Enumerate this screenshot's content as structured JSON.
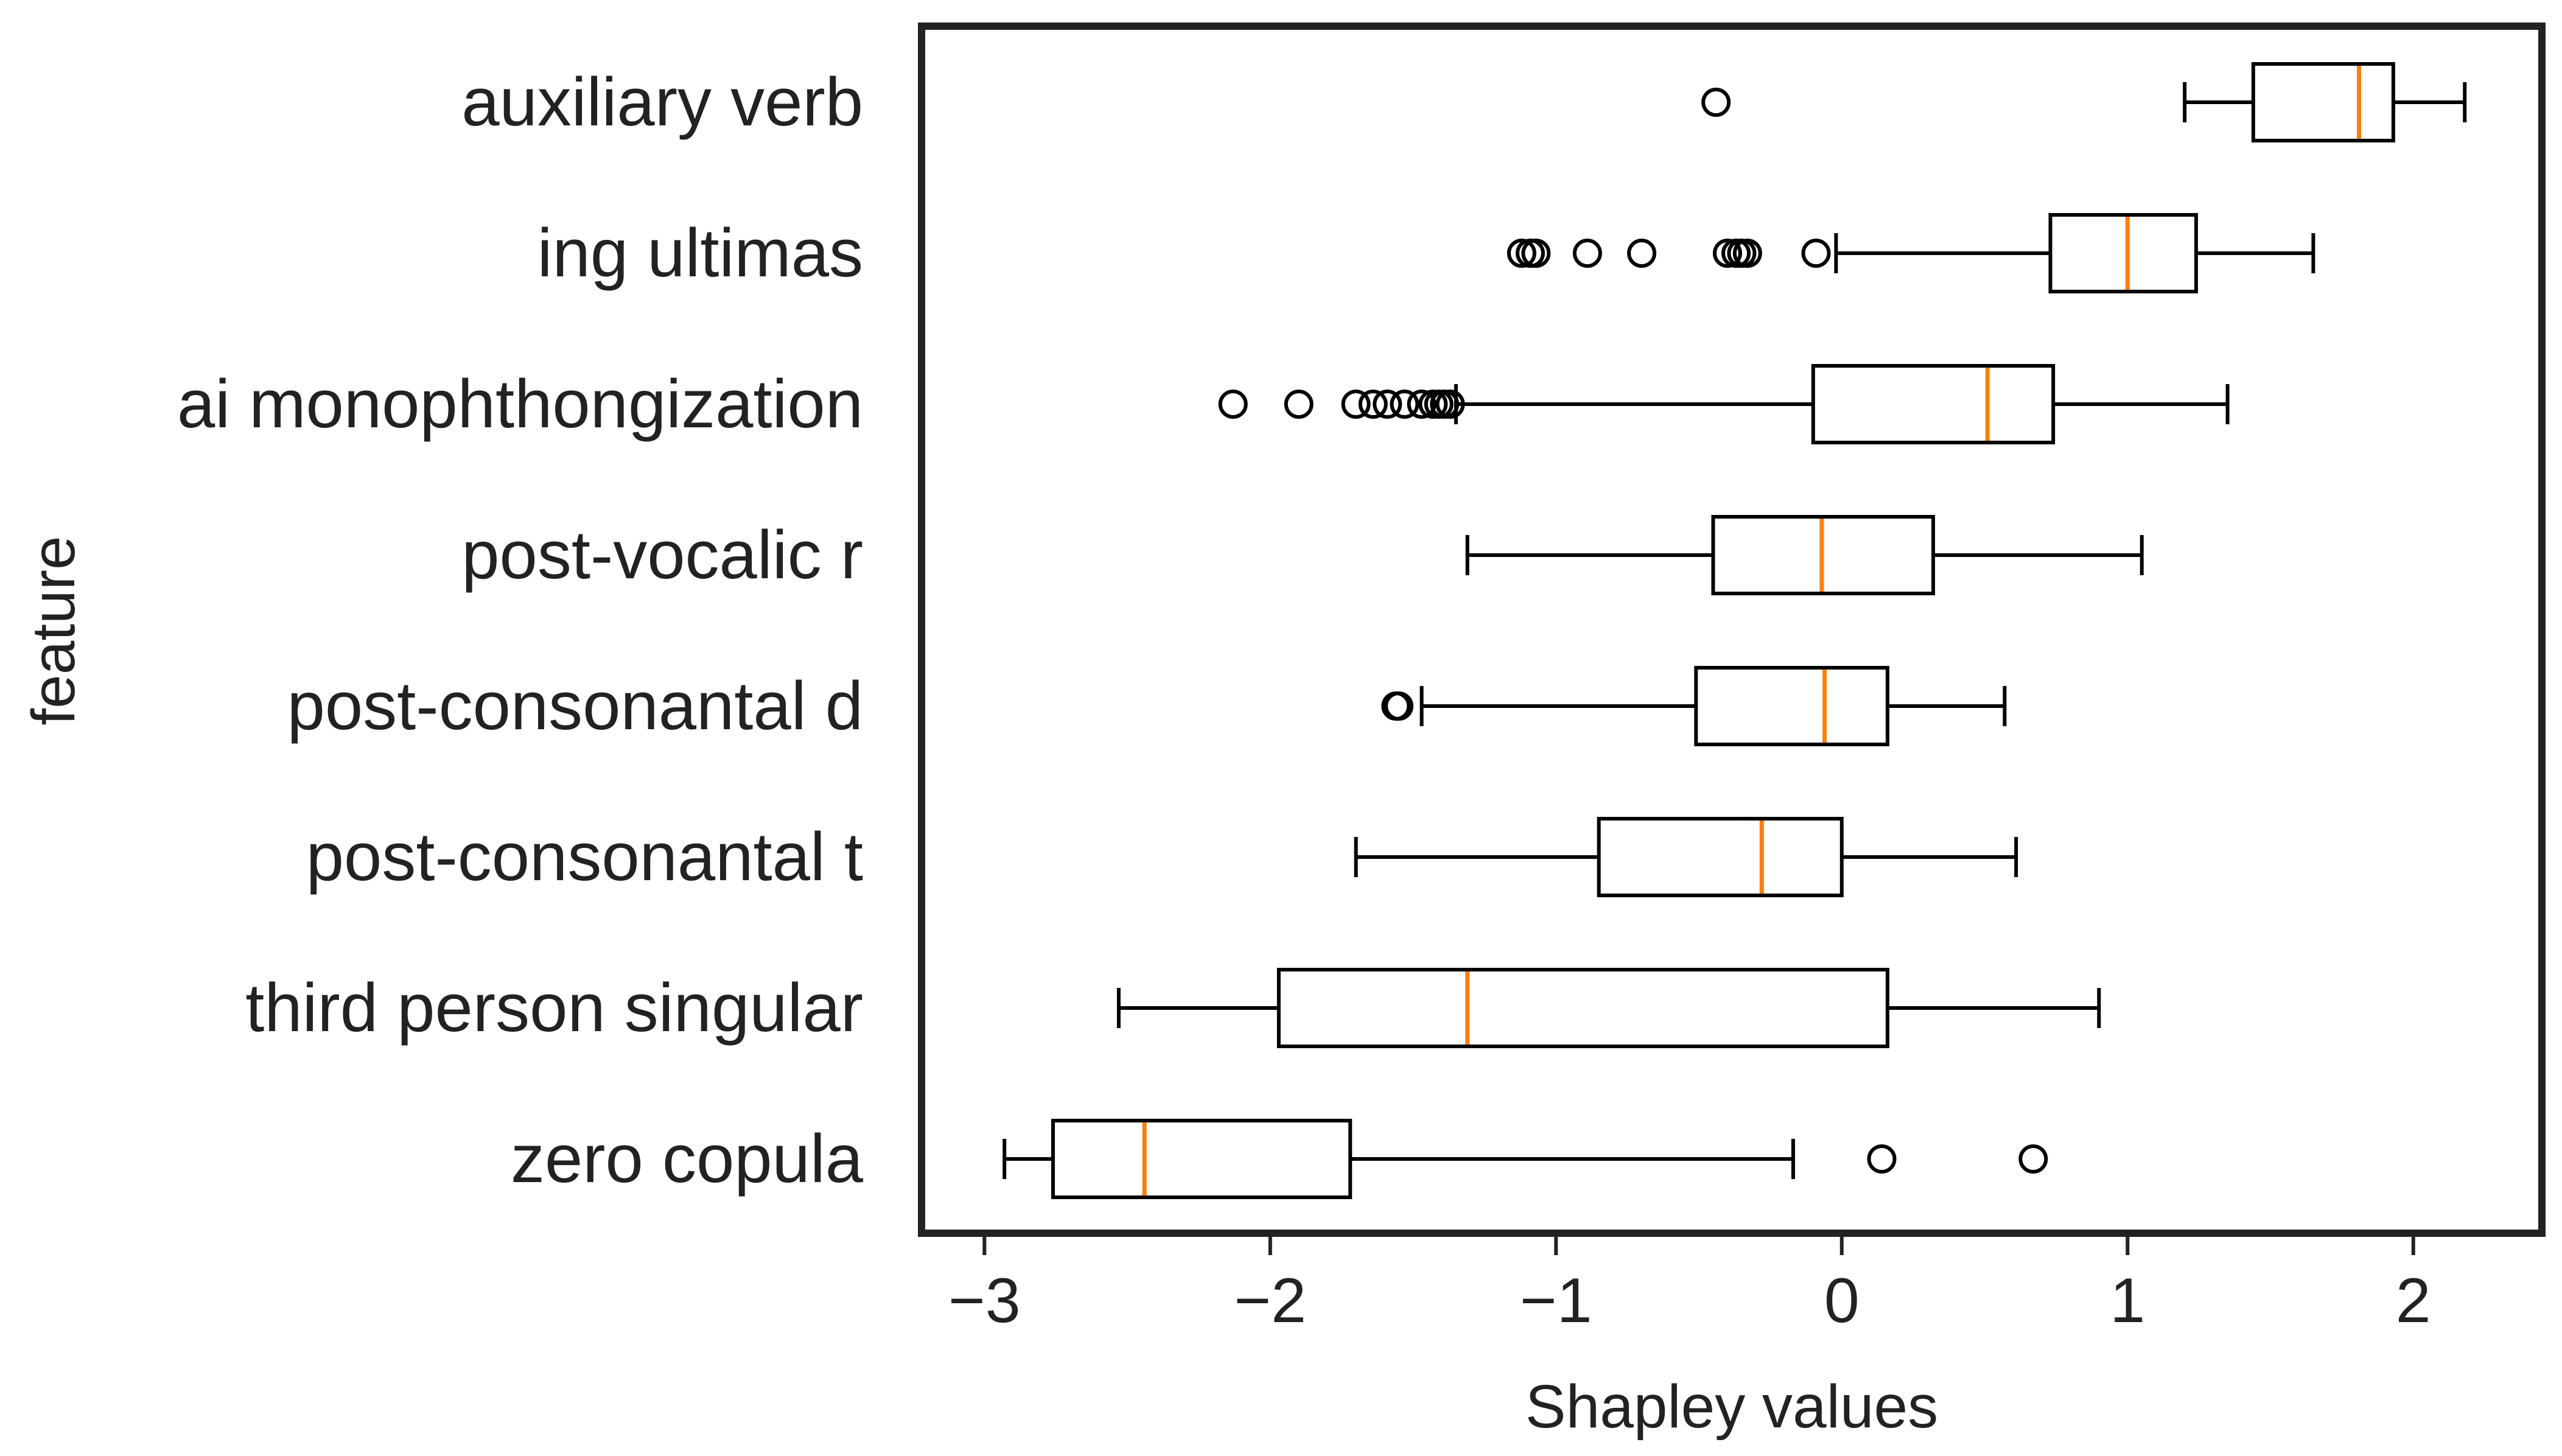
{
  "chart_data": {
    "type": "boxplot",
    "orientation": "horizontal",
    "title": "",
    "xlabel": "Shapley values",
    "ylabel": "feature",
    "xlim": [
      -3.22,
      2.45
    ],
    "xticks": [
      -3,
      -2,
      -1,
      0,
      1,
      2
    ],
    "xtick_labels": [
      "−3",
      "−2",
      "−1",
      "0",
      "1",
      "2"
    ],
    "grid": false,
    "colors": {
      "box": "#000000",
      "median": "#ff7f0e",
      "frame": "#222222",
      "text": "#222222"
    },
    "series": [
      {
        "name": "auxiliary verb",
        "whisker_low": 1.2,
        "q1": 1.44,
        "median": 1.81,
        "q3": 1.93,
        "whisker_high": 2.18,
        "outliers": [
          -0.44
        ]
      },
      {
        "name": "ing ultimas",
        "whisker_low": -0.02,
        "q1": 0.73,
        "median": 1.0,
        "q3": 1.24,
        "whisker_high": 1.65,
        "outliers": [
          -1.12,
          -1.09,
          -1.07,
          -0.89,
          -0.7,
          -0.4,
          -0.37,
          -0.35,
          -0.33,
          -0.09
        ]
      },
      {
        "name": "ai monophthongization",
        "whisker_low": -1.35,
        "q1": -0.1,
        "median": 0.51,
        "q3": 0.74,
        "whisker_high": 1.35,
        "outliers": [
          -2.13,
          -1.9,
          -1.7,
          -1.64,
          -1.59,
          -1.53,
          -1.47,
          -1.43,
          -1.41,
          -1.39,
          -1.37
        ]
      },
      {
        "name": "post-vocalic r",
        "whisker_low": -1.31,
        "q1": -0.45,
        "median": -0.07,
        "q3": 0.32,
        "whisker_high": 1.05,
        "outliers": []
      },
      {
        "name": "post-consonantal d",
        "whisker_low": -1.47,
        "q1": -0.51,
        "median": -0.06,
        "q3": 0.16,
        "whisker_high": 0.57,
        "outliers": [
          -1.56,
          -1.55
        ]
      },
      {
        "name": "post-consonantal t",
        "whisker_low": -1.7,
        "q1": -0.85,
        "median": -0.28,
        "q3": 0.0,
        "whisker_high": 0.61,
        "outliers": []
      },
      {
        "name": "third person singular",
        "whisker_low": -2.53,
        "q1": -1.97,
        "median": -1.31,
        "q3": 0.16,
        "whisker_high": 0.9,
        "outliers": []
      },
      {
        "name": "zero copula",
        "whisker_low": -2.93,
        "q1": -2.76,
        "median": -2.44,
        "q3": -1.72,
        "whisker_high": -0.17,
        "outliers": [
          0.14,
          0.67
        ]
      }
    ]
  }
}
